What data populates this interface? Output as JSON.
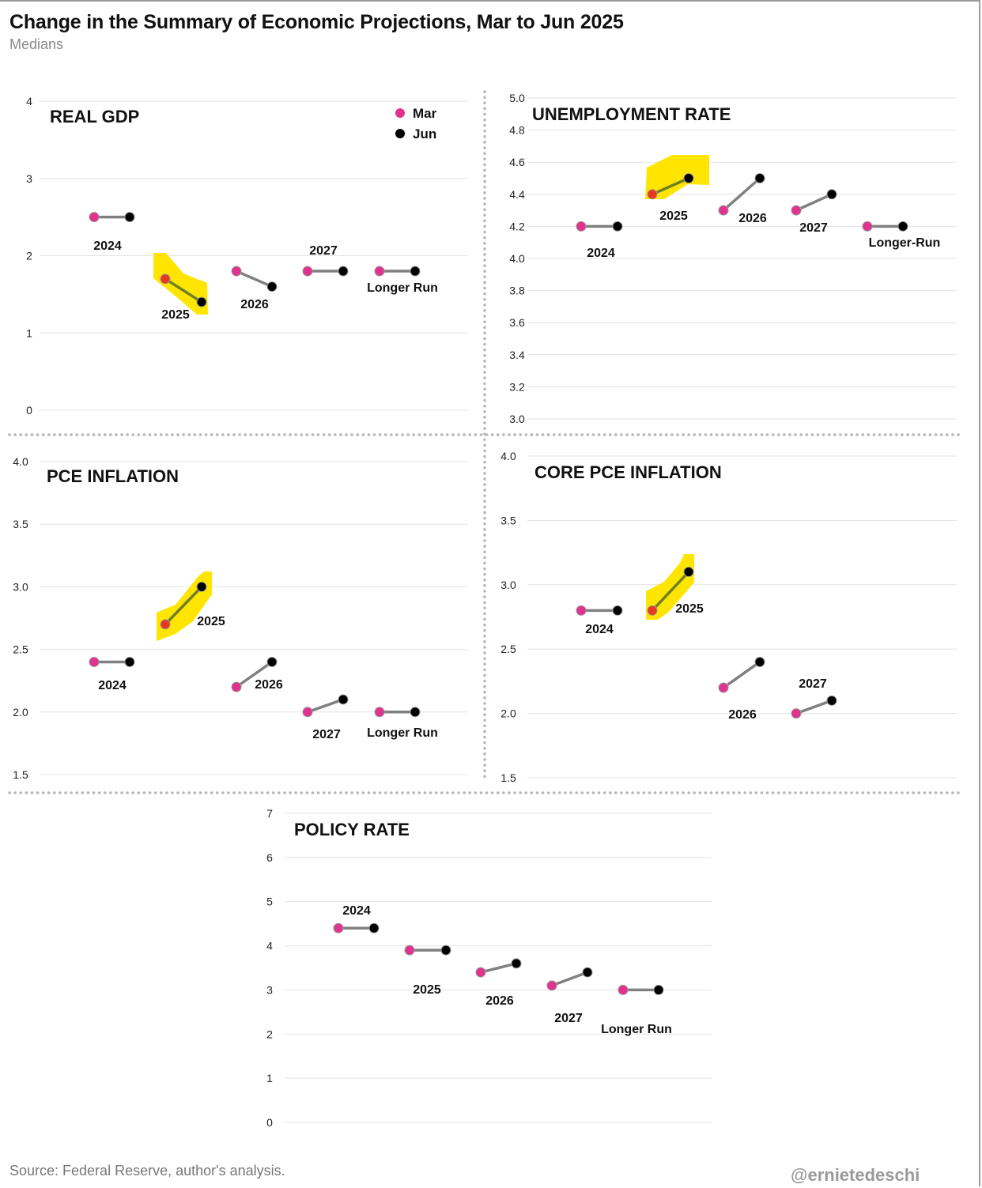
{
  "title": "Change in the Summary of Economic Projections, Mar to Jun 2025",
  "subtitle": "Medians",
  "source": "Source: Federal Reserve, author's analysis.",
  "handle": "@ernietedeschi",
  "colors": {
    "mar": "#e0338f",
    "jun": "#000000",
    "connector": "#808080",
    "highlight": "#ffe500",
    "highlight_dot": "#e8381f",
    "grid": "#e3e3e3",
    "divider": "#b5b5b5"
  },
  "chart_data": [
    {
      "type": "scatter",
      "title": "REAL GDP",
      "legend": {
        "placement": "top-right",
        "entries": [
          "Mar",
          "Jun"
        ]
      },
      "ylim": [
        0,
        4
      ],
      "yticks": [
        "0",
        "1",
        "2",
        "3",
        "4"
      ],
      "grid": true,
      "series": [
        {
          "name": "Mar"
        },
        {
          "name": "Jun"
        }
      ],
      "categories": [
        "2024",
        "2025",
        "2026",
        "2027",
        "Longer Run"
      ],
      "mar": [
        2.5,
        1.7,
        1.8,
        1.8,
        1.8
      ],
      "jun": [
        2.5,
        1.4,
        1.6,
        1.8,
        1.8
      ],
      "highlight": "2025"
    },
    {
      "type": "scatter",
      "title": "UNEMPLOYMENT RATE",
      "ylim": [
        3.0,
        5.0
      ],
      "yticks": [
        "3.0",
        "3.2",
        "3.4",
        "3.6",
        "3.8",
        "4.0",
        "4.2",
        "4.4",
        "4.6",
        "4.8",
        "5.0"
      ],
      "grid": true,
      "categories": [
        "2024",
        "2025",
        "2026",
        "2027",
        "Longer-Run"
      ],
      "mar": [
        4.2,
        4.4,
        4.3,
        4.3,
        4.2
      ],
      "jun": [
        4.2,
        4.5,
        4.5,
        4.4,
        4.2
      ],
      "highlight": "2025"
    },
    {
      "type": "scatter",
      "title": "PCE INFLATION",
      "ylim": [
        1.5,
        4.0
      ],
      "yticks": [
        "1.5",
        "2.0",
        "2.5",
        "3.0",
        "3.5",
        "4.0"
      ],
      "grid": true,
      "categories": [
        "2024",
        "2025",
        "2026",
        "2027",
        "Longer Run"
      ],
      "mar": [
        2.4,
        2.7,
        2.2,
        2.0,
        2.0
      ],
      "jun": [
        2.4,
        3.0,
        2.4,
        2.1,
        2.0
      ],
      "highlight": "2025"
    },
    {
      "type": "scatter",
      "title": "CORE PCE INFLATION",
      "ylim": [
        1.5,
        4.0
      ],
      "yticks": [
        "1.5",
        "2.0",
        "2.5",
        "3.0",
        "3.5",
        "4.0"
      ],
      "grid": true,
      "categories": [
        "2024",
        "2025",
        "2026",
        "2027"
      ],
      "mar": [
        2.8,
        2.8,
        2.2,
        2.0
      ],
      "jun": [
        2.8,
        3.1,
        2.4,
        2.1
      ],
      "highlight": "2025"
    },
    {
      "type": "scatter",
      "title": "POLICY RATE",
      "ylim": [
        0,
        7
      ],
      "yticks": [
        "0",
        "1",
        "2",
        "3",
        "4",
        "5",
        "6",
        "7"
      ],
      "grid": true,
      "categories": [
        "2024",
        "2025",
        "2026",
        "2027",
        "Longer Run"
      ],
      "mar": [
        4.4,
        3.9,
        3.4,
        3.1,
        3.0
      ],
      "jun": [
        4.4,
        3.9,
        3.6,
        3.4,
        3.0
      ]
    }
  ]
}
